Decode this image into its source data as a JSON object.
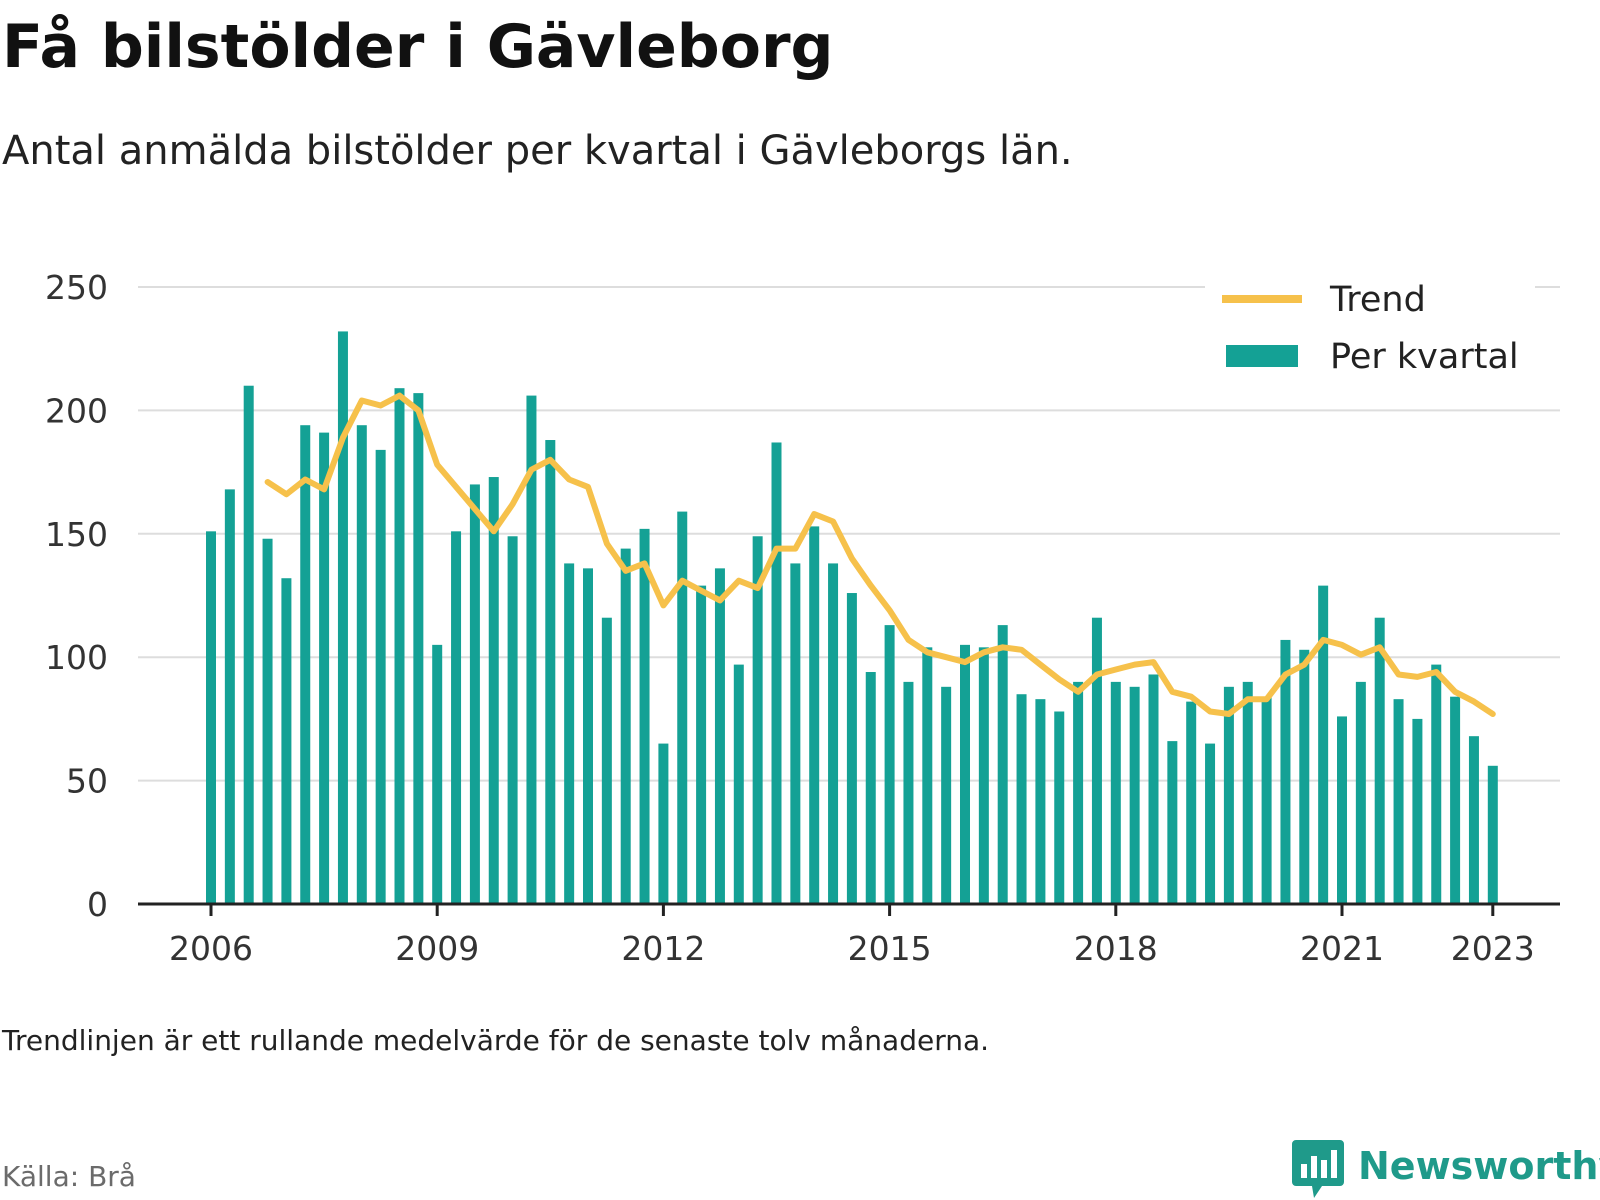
{
  "header": {
    "title": "Få bilstölder i Gävleborg",
    "subtitle": "Antal anmälda bilstölder per kvartal i Gävleborgs län."
  },
  "footer": {
    "note": "Trendlinjen är ett rullande medelvärde för de senaste tolv månaderna.",
    "source": "Källa: Brå",
    "brand": "Newsworthy"
  },
  "colors": {
    "bar": "#14a195",
    "trend": "#f6c14b",
    "grid": "#dddddd",
    "axis": "#222222",
    "brand": "#1f9a8a"
  },
  "chart_data": {
    "type": "bar",
    "x_start": "2006 Q1",
    "x_end": "2023 Q1",
    "x_ticks": [
      "2006",
      "2009",
      "2012",
      "2015",
      "2018",
      "2021",
      "2023"
    ],
    "ylim": [
      0,
      250
    ],
    "y_ticks": [
      0,
      50,
      100,
      150,
      200,
      250
    ],
    "grid": true,
    "legend_position": "top-right",
    "series": [
      {
        "name": "Per kvartal",
        "type": "bar",
        "values": [
          151,
          168,
          210,
          148,
          132,
          194,
          191,
          232,
          194,
          184,
          209,
          207,
          105,
          151,
          170,
          173,
          149,
          206,
          188,
          138,
          136,
          116,
          144,
          152,
          65,
          159,
          129,
          136,
          97,
          149,
          187,
          138,
          153,
          138,
          126,
          94,
          113,
          90,
          104,
          88,
          105,
          104,
          113,
          85,
          83,
          78,
          90,
          116,
          90,
          88,
          93,
          66,
          82,
          65,
          88,
          90,
          84,
          107,
          103,
          129,
          76,
          90,
          116,
          83,
          75,
          97,
          84,
          68,
          56
        ]
      },
      {
        "name": "Trend",
        "type": "line",
        "start_index": 3,
        "values": [
          171,
          166,
          172,
          168,
          189,
          204,
          202,
          206,
          200,
          178,
          169,
          160,
          151,
          162,
          176,
          180,
          172,
          169,
          146,
          135,
          138,
          121,
          131,
          127,
          123,
          131,
          128,
          144,
          144,
          158,
          155,
          140,
          129,
          119,
          107,
          102,
          100,
          98,
          102,
          104,
          103,
          97,
          91,
          86,
          93,
          95,
          97,
          98,
          86,
          84,
          78,
          77,
          83,
          83,
          93,
          97,
          107,
          105,
          101,
          104,
          93,
          92,
          94,
          86,
          82,
          77
        ]
      }
    ]
  }
}
